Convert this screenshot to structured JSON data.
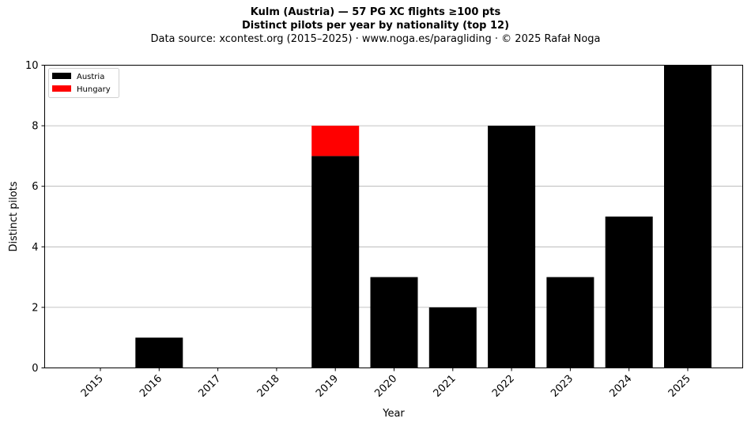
{
  "chart_data": {
    "type": "bar",
    "stacked": true,
    "title": "Kulm (Austria)  —  57 PG XC flights ≥100 pts",
    "subtitle": "Distinct pilots per year by nationality (top 12)",
    "source": "Data source: xcontest.org (2015–2025)  ·  www.noga.es/paragliding  ·  © 2025 Rafał Noga",
    "xlabel": "Year",
    "ylabel": "Distinct pilots",
    "categories": [
      "2015",
      "2016",
      "2017",
      "2018",
      "2019",
      "2020",
      "2021",
      "2022",
      "2023",
      "2024",
      "2025"
    ],
    "series": [
      {
        "name": "Austria",
        "color": "#000000",
        "values": [
          0,
          1,
          0,
          0,
          7,
          3,
          2,
          8,
          3,
          5,
          10
        ]
      },
      {
        "name": "Hungary",
        "color": "#ff0000",
        "values": [
          0,
          0,
          0,
          0,
          1,
          0,
          0,
          0,
          0,
          0,
          0
        ]
      }
    ],
    "ylim": [
      0,
      10
    ],
    "yticks": [
      "0",
      "2",
      "4",
      "6",
      "8",
      "10"
    ],
    "grid": "y",
    "legend_position": "top-left"
  }
}
